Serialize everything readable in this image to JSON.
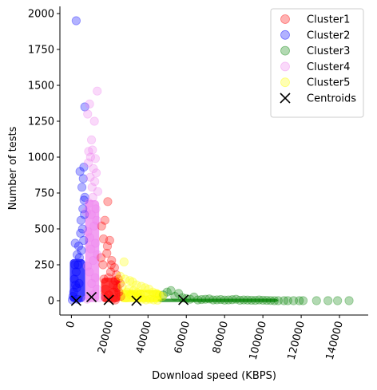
{
  "chart_data": {
    "type": "scatter",
    "title": "",
    "xlabel": "Download speed (KBPS)",
    "ylabel": "Number of tests",
    "xlim": [
      -6000,
      155000
    ],
    "ylim": [
      -100,
      2050
    ],
    "xticks": [
      0,
      20000,
      40000,
      60000,
      80000,
      100000,
      120000,
      140000
    ],
    "xtick_labels": [
      "0",
      "20000",
      "40000",
      "60000",
      "80000",
      "100000",
      "120000",
      "140000"
    ],
    "yticks": [
      0,
      250,
      500,
      750,
      1000,
      1250,
      1500,
      1750,
      2000
    ],
    "ytick_labels": [
      "0",
      "250",
      "500",
      "750",
      "1000",
      "1250",
      "1500",
      "1750",
      "2000"
    ],
    "grid": false,
    "legend_position": "top-right",
    "legend": [
      "Cluster1",
      "Cluster2",
      "Cluster3",
      "Cluster4",
      "Cluster5",
      "Centroids"
    ],
    "series": [
      {
        "name": "Cluster1",
        "color": "#ff0000",
        "points": [
          [
            19000,
            690
          ],
          [
            20000,
            420
          ],
          [
            17500,
            560
          ],
          [
            18500,
            330
          ],
          [
            21000,
            280
          ],
          [
            22500,
            230
          ],
          [
            20500,
            200
          ],
          [
            23500,
            180
          ],
          [
            24500,
            150
          ],
          [
            25500,
            120
          ],
          [
            24000,
            90
          ],
          [
            22000,
            60
          ],
          [
            19500,
            40
          ],
          [
            18000,
            20
          ],
          [
            21500,
            10
          ],
          [
            23000,
            5
          ],
          [
            15500,
            300
          ],
          [
            16500,
            250
          ],
          [
            17000,
            150
          ],
          [
            18800,
            380
          ],
          [
            19300,
            160
          ],
          [
            17800,
            80
          ],
          [
            21800,
            110
          ],
          [
            16800,
            430
          ],
          [
            15800,
            520
          ],
          [
            22800,
            140
          ],
          [
            20800,
            250
          ],
          [
            24800,
            60
          ],
          [
            25800,
            30
          ]
        ]
      },
      {
        "name": "Cluster2",
        "color": "#0000ff",
        "points": [
          [
            2500,
            1950
          ],
          [
            7000,
            1350
          ],
          [
            4500,
            900
          ],
          [
            6500,
            930
          ],
          [
            6200,
            850
          ],
          [
            5500,
            790
          ],
          [
            7000,
            720
          ],
          [
            6000,
            640
          ],
          [
            5000,
            560
          ],
          [
            6800,
            600
          ],
          [
            4800,
            470
          ],
          [
            2000,
            400
          ],
          [
            3800,
            380
          ],
          [
            3000,
            320
          ],
          [
            3500,
            250
          ],
          [
            2500,
            200
          ],
          [
            1500,
            150
          ],
          [
            4000,
            120
          ],
          [
            2800,
            90
          ],
          [
            1200,
            60
          ],
          [
            800,
            30
          ],
          [
            3200,
            10
          ],
          [
            500,
            5
          ],
          [
            5800,
            500
          ],
          [
            6400,
            420
          ],
          [
            4200,
            300
          ],
          [
            5200,
            350
          ],
          [
            1800,
            250
          ],
          [
            2200,
            110
          ],
          [
            6600,
            700
          ]
        ]
      },
      {
        "name": "Cluster3",
        "color": "#008000",
        "points": [
          [
            52000,
            70
          ],
          [
            50000,
            60
          ],
          [
            54000,
            30
          ],
          [
            58000,
            20
          ],
          [
            62000,
            10
          ],
          [
            66000,
            5
          ],
          [
            70000,
            10
          ],
          [
            74000,
            5
          ],
          [
            78000,
            8
          ],
          [
            82000,
            5
          ],
          [
            86000,
            10
          ],
          [
            90000,
            5
          ],
          [
            94000,
            3
          ],
          [
            98000,
            5
          ],
          [
            102000,
            2
          ],
          [
            106000,
            0
          ],
          [
            108000,
            0
          ],
          [
            111000,
            0
          ],
          [
            113000,
            0
          ],
          [
            116000,
            0
          ],
          [
            119000,
            0
          ],
          [
            121000,
            0
          ],
          [
            128000,
            0
          ],
          [
            134000,
            0
          ],
          [
            139000,
            0
          ],
          [
            145000,
            0
          ],
          [
            48000,
            40
          ],
          [
            56000,
            50
          ],
          [
            60000,
            15
          ],
          [
            64000,
            25
          ],
          [
            68000,
            8
          ],
          [
            72000,
            12
          ],
          [
            76000,
            6
          ],
          [
            80000,
            4
          ],
          [
            84000,
            7
          ],
          [
            88000,
            3
          ],
          [
            92000,
            4
          ],
          [
            96000,
            2
          ],
          [
            100000,
            3
          ],
          [
            104000,
            1
          ]
        ]
      },
      {
        "name": "Cluster4",
        "color": "#ee82ee",
        "points": [
          [
            13500,
            1460
          ],
          [
            9500,
            1370
          ],
          [
            8500,
            1300
          ],
          [
            12000,
            1250
          ],
          [
            10500,
            1120
          ],
          [
            11000,
            1050
          ],
          [
            9000,
            1040
          ],
          [
            10000,
            1000
          ],
          [
            12500,
            990
          ],
          [
            8800,
            960
          ],
          [
            11500,
            920
          ],
          [
            13000,
            890
          ],
          [
            9800,
            860
          ],
          [
            12200,
            830
          ],
          [
            10800,
            790
          ],
          [
            13800,
            760
          ],
          [
            11200,
            720
          ],
          [
            9200,
            680
          ],
          [
            12800,
            640
          ],
          [
            10400,
            600
          ],
          [
            13200,
            560
          ],
          [
            11800,
            520
          ],
          [
            8600,
            480
          ],
          [
            9600,
            440
          ],
          [
            12600,
            400
          ],
          [
            10200,
            360
          ],
          [
            13600,
            320
          ],
          [
            11400,
            280
          ],
          [
            8400,
            240
          ],
          [
            9400,
            200
          ],
          [
            12400,
            160
          ],
          [
            10600,
            120
          ],
          [
            13400,
            80
          ],
          [
            11600,
            40
          ],
          [
            8200,
            10
          ],
          [
            14500,
            20
          ],
          [
            7800,
            620
          ]
        ]
      },
      {
        "name": "Cluster5",
        "color": "#ffff00",
        "points": [
          [
            27500,
            270
          ],
          [
            25500,
            170
          ],
          [
            28000,
            150
          ],
          [
            30500,
            140
          ],
          [
            32000,
            130
          ],
          [
            34000,
            110
          ],
          [
            36500,
            100
          ],
          [
            38500,
            90
          ],
          [
            40500,
            80
          ],
          [
            42500,
            60
          ],
          [
            44500,
            50
          ],
          [
            46000,
            40
          ],
          [
            47500,
            30
          ],
          [
            29000,
            60
          ],
          [
            31000,
            40
          ],
          [
            33000,
            30
          ],
          [
            35000,
            20
          ],
          [
            37000,
            10
          ],
          [
            39000,
            5
          ],
          [
            41000,
            10
          ],
          [
            43000,
            5
          ],
          [
            45000,
            3
          ],
          [
            26500,
            100
          ],
          [
            28500,
            20
          ],
          [
            30000,
            80
          ],
          [
            32500,
            70
          ],
          [
            34500,
            55
          ],
          [
            36000,
            45
          ]
        ]
      }
    ],
    "centroids": [
      [
        2500,
        0
      ],
      [
        10500,
        25
      ],
      [
        19500,
        5
      ],
      [
        34000,
        0
      ],
      [
        58500,
        5
      ]
    ]
  }
}
